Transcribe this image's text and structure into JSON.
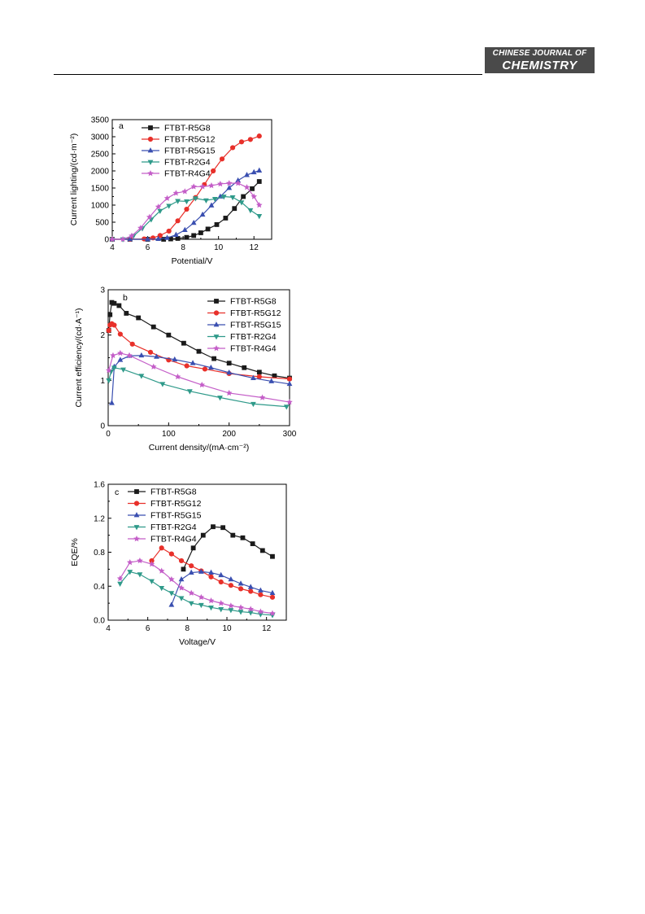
{
  "header": {
    "logo_line1": "CHINESE JOURNAL OF",
    "logo_line2": "CHEMISTRY"
  },
  "colors": {
    "FTBT-R5G8": "#1a1a1a",
    "FTBT-R5G12": "#e8302a",
    "FTBT-R5G15": "#3a4fb0",
    "FTBT-R2G4": "#2f9a8a",
    "FTBT-R4G4": "#c45ec8"
  },
  "chart_data": [
    {
      "type": "line",
      "panel_label": "a",
      "xlabel": "Potential/V",
      "ylabel": "Current lighting/(cd·m⁻²)",
      "xlim": [
        4,
        13
      ],
      "ylim": [
        0,
        3500
      ],
      "xticks": [
        4,
        6,
        8,
        10,
        12
      ],
      "yticks": [
        0,
        500,
        1000,
        1500,
        2000,
        2500,
        3000,
        3500
      ],
      "legend_position": "top-left",
      "series": [
        {
          "name": "FTBT-R5G8",
          "marker": "square",
          "x": [
            4,
            5,
            6,
            6.9,
            7.3,
            7.7,
            8.2,
            8.6,
            9.0,
            9.4,
            9.9,
            10.4,
            10.9,
            11.4,
            11.9,
            12.3
          ],
          "y": [
            0,
            0,
            0,
            0,
            10,
            25,
            55,
            110,
            190,
            300,
            430,
            620,
            900,
            1250,
            1480,
            1690
          ]
        },
        {
          "name": "FTBT-R5G12",
          "marker": "circle",
          "x": [
            4,
            5,
            5.8,
            6.3,
            6.7,
            7.2,
            7.7,
            8.2,
            8.7,
            9.2,
            9.7,
            10.2,
            10.8,
            11.3,
            11.8,
            12.3
          ],
          "y": [
            0,
            0,
            10,
            40,
            110,
            240,
            540,
            880,
            1220,
            1600,
            2000,
            2350,
            2680,
            2850,
            2920,
            3020
          ]
        },
        {
          "name": "FTBT-R5G15",
          "marker": "triangle-up",
          "x": [
            4,
            5,
            6,
            6.6,
            7.1,
            7.6,
            8.1,
            8.6,
            9.1,
            9.6,
            10.1,
            10.6,
            11.1,
            11.6,
            12.0,
            12.3
          ],
          "y": [
            0,
            0,
            0,
            10,
            40,
            130,
            270,
            480,
            720,
            990,
            1250,
            1500,
            1720,
            1880,
            1960,
            2010
          ]
        },
        {
          "name": "FTBT-R2G4",
          "marker": "triangle-down",
          "x": [
            4,
            4.6,
            5.2,
            5.7,
            6.2,
            6.7,
            7.2,
            7.7,
            8.2,
            8.7,
            9.3,
            9.8,
            10.3,
            10.8,
            11.3,
            11.8,
            12.3
          ],
          "y": [
            0,
            0,
            100,
            320,
            580,
            830,
            980,
            1120,
            1110,
            1200,
            1140,
            1180,
            1250,
            1230,
            1080,
            850,
            680
          ]
        },
        {
          "name": "FTBT-R4G4",
          "marker": "star",
          "x": [
            4,
            4.6,
            5.1,
            5.6,
            6.1,
            6.6,
            7.1,
            7.6,
            8.1,
            8.6,
            9.1,
            9.6,
            10.1,
            10.6,
            11.1,
            11.6,
            12.0,
            12.3
          ],
          "y": [
            0,
            0,
            100,
            330,
            650,
            950,
            1200,
            1350,
            1400,
            1540,
            1540,
            1570,
            1620,
            1640,
            1640,
            1520,
            1250,
            1000
          ]
        }
      ]
    },
    {
      "type": "line",
      "panel_label": "b",
      "xlabel": "Current density/(mA·cm⁻²)",
      "ylabel": "Current efficiency/(cd·A⁻¹)",
      "xlim": [
        0,
        300
      ],
      "ylim": [
        0,
        3
      ],
      "xticks": [
        0,
        100,
        200,
        300
      ],
      "yticks": [
        0,
        1,
        2,
        3
      ],
      "legend_position": "top-right",
      "series": [
        {
          "name": "FTBT-R5G8",
          "marker": "square",
          "x": [
            1,
            3,
            6,
            10,
            18,
            30,
            50,
            75,
            100,
            125,
            150,
            175,
            200,
            225,
            250,
            275,
            300
          ],
          "y": [
            2.1,
            2.45,
            2.72,
            2.7,
            2.65,
            2.48,
            2.38,
            2.18,
            2.0,
            1.82,
            1.64,
            1.48,
            1.38,
            1.28,
            1.18,
            1.1,
            1.05
          ]
        },
        {
          "name": "FTBT-R5G12",
          "marker": "circle",
          "x": [
            1,
            3,
            6,
            10,
            20,
            40,
            70,
            100,
            130,
            160,
            200,
            250,
            300
          ],
          "y": [
            2.1,
            2.22,
            2.25,
            2.22,
            2.02,
            1.8,
            1.62,
            1.45,
            1.32,
            1.25,
            1.15,
            1.08,
            1.03
          ]
        },
        {
          "name": "FTBT-R5G15",
          "marker": "triangle-up",
          "x": [
            6,
            10,
            20,
            35,
            55,
            80,
            110,
            140,
            170,
            200,
            240,
            270,
            300
          ],
          "y": [
            0.5,
            1.3,
            1.45,
            1.54,
            1.55,
            1.52,
            1.46,
            1.38,
            1.28,
            1.17,
            1.05,
            0.98,
            0.92
          ]
        },
        {
          "name": "FTBT-R2G4",
          "marker": "triangle-down",
          "x": [
            1,
            5,
            10,
            25,
            55,
            90,
            135,
            185,
            240,
            295
          ],
          "y": [
            1.0,
            1.2,
            1.28,
            1.24,
            1.1,
            0.92,
            0.76,
            0.62,
            0.48,
            0.42
          ]
        },
        {
          "name": "FTBT-R4G4",
          "marker": "star",
          "x": [
            1,
            8,
            20,
            35,
            75,
            115,
            155,
            200,
            255,
            300
          ],
          "y": [
            1.22,
            1.55,
            1.6,
            1.55,
            1.3,
            1.08,
            0.9,
            0.72,
            0.62,
            0.52
          ]
        }
      ]
    },
    {
      "type": "line",
      "panel_label": "c",
      "xlabel": "Voltage/V",
      "ylabel": "EQE/%",
      "xlim": [
        4,
        13
      ],
      "ylim": [
        0,
        1.6
      ],
      "xticks": [
        4,
        6,
        8,
        10,
        12
      ],
      "yticks": [
        0.0,
        0.4,
        0.8,
        1.2,
        1.6
      ],
      "legend_position": "top-left",
      "series": [
        {
          "name": "FTBT-R5G8",
          "marker": "square",
          "x": [
            7.8,
            8.3,
            8.8,
            9.3,
            9.8,
            10.3,
            10.8,
            11.3,
            11.8,
            12.3
          ],
          "y": [
            0.6,
            0.85,
            1.0,
            1.1,
            1.09,
            1.0,
            0.97,
            0.9,
            0.82,
            0.75
          ]
        },
        {
          "name": "FTBT-R5G12",
          "marker": "circle",
          "x": [
            6.2,
            6.7,
            7.2,
            7.7,
            8.2,
            8.7,
            9.2,
            9.7,
            10.2,
            10.7,
            11.2,
            11.7,
            12.3
          ],
          "y": [
            0.7,
            0.85,
            0.78,
            0.7,
            0.64,
            0.58,
            0.51,
            0.45,
            0.41,
            0.37,
            0.34,
            0.3,
            0.27
          ]
        },
        {
          "name": "FTBT-R5G15",
          "marker": "triangle-up",
          "x": [
            7.2,
            7.7,
            8.2,
            8.7,
            9.2,
            9.7,
            10.2,
            10.7,
            11.2,
            11.7,
            12.3
          ],
          "y": [
            0.18,
            0.48,
            0.56,
            0.57,
            0.56,
            0.53,
            0.48,
            0.43,
            0.39,
            0.35,
            0.32
          ]
        },
        {
          "name": "FTBT-R2G4",
          "marker": "triangle-down",
          "x": [
            4.6,
            5.1,
            5.6,
            6.2,
            6.7,
            7.2,
            7.7,
            8.2,
            8.7,
            9.2,
            9.7,
            10.2,
            10.7,
            11.2,
            11.7,
            12.3
          ],
          "y": [
            0.43,
            0.57,
            0.54,
            0.46,
            0.38,
            0.32,
            0.26,
            0.2,
            0.18,
            0.15,
            0.13,
            0.12,
            0.1,
            0.09,
            0.07,
            0.06
          ]
        },
        {
          "name": "FTBT-R4G4",
          "marker": "star",
          "x": [
            4.6,
            5.1,
            5.6,
            6.2,
            6.7,
            7.2,
            7.7,
            8.2,
            8.7,
            9.2,
            9.7,
            10.2,
            10.7,
            11.2,
            11.7,
            12.3
          ],
          "y": [
            0.49,
            0.68,
            0.7,
            0.66,
            0.58,
            0.48,
            0.38,
            0.32,
            0.27,
            0.23,
            0.2,
            0.17,
            0.15,
            0.13,
            0.1,
            0.08
          ]
        }
      ]
    }
  ]
}
